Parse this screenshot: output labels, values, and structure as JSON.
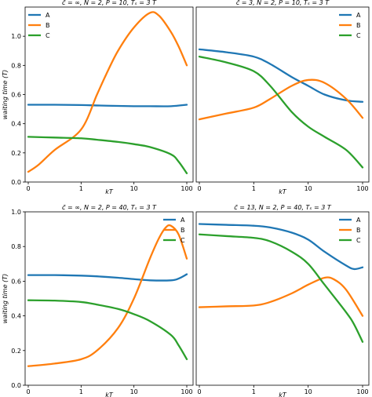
{
  "colors": {
    "A": "#1f77b4",
    "B": "#ff7f0e",
    "C": "#2ca02c"
  },
  "chart_data": [
    {
      "type": "line",
      "title": "c̄ = ∞, N = 2, P = 10, Tₛ = 3 T",
      "xlabel": "kT",
      "ylabel": "waiting time (T)",
      "xscale": "symlog",
      "xlim": [
        0,
        100
      ],
      "ylim": [
        0,
        1.2
      ],
      "xticks": [
        {
          "v": 0,
          "label": "0"
        },
        {
          "v": 1,
          "label": "1"
        },
        {
          "v": 10,
          "label": "10"
        },
        {
          "v": 100,
          "label": "100"
        }
      ],
      "yticks": [
        {
          "v": 0,
          "label": "0.0"
        },
        {
          "v": 0.2,
          "label": "0.2"
        },
        {
          "v": 0.4,
          "label": "0.4"
        },
        {
          "v": 0.6,
          "label": "0.6"
        },
        {
          "v": 0.8,
          "label": "0.8"
        },
        {
          "v": 1.0,
          "label": "1.0"
        }
      ],
      "legend": "top-left",
      "series": [
        {
          "name": "A",
          "x": [
            0,
            0.5,
            1,
            2,
            5,
            10,
            20,
            50,
            100
          ],
          "y": [
            0.53,
            0.53,
            0.528,
            0.525,
            0.522,
            0.52,
            0.52,
            0.52,
            0.53
          ]
        },
        {
          "name": "B",
          "x": [
            0,
            0.2,
            0.5,
            1,
            2,
            3,
            5,
            10,
            20,
            30,
            50,
            70,
            100
          ],
          "y": [
            0.07,
            0.12,
            0.22,
            0.36,
            0.6,
            0.74,
            0.9,
            1.06,
            1.16,
            1.14,
            1.03,
            0.93,
            0.8
          ]
        },
        {
          "name": "C",
          "x": [
            0,
            0.5,
            1,
            2,
            5,
            10,
            20,
            50,
            70,
            100
          ],
          "y": [
            0.31,
            0.305,
            0.3,
            0.29,
            0.275,
            0.26,
            0.24,
            0.19,
            0.14,
            0.06
          ]
        }
      ]
    },
    {
      "type": "line",
      "title": "c̄ = 3, N = 2, P = 10, Tₛ = 3 T",
      "xlabel": "kT",
      "ylabel": "",
      "xscale": "symlog",
      "xlim": [
        0,
        100
      ],
      "ylim": [
        0,
        1.2
      ],
      "xticks": [
        {
          "v": 0,
          "label": "0"
        },
        {
          "v": 1,
          "label": "1"
        },
        {
          "v": 10,
          "label": "10"
        },
        {
          "v": 100,
          "label": "100"
        }
      ],
      "yticks": [],
      "legend": "top-right",
      "series": [
        {
          "name": "A",
          "x": [
            0,
            0.5,
            1,
            2,
            5,
            10,
            20,
            50,
            100
          ],
          "y": [
            0.91,
            0.89,
            0.86,
            0.81,
            0.72,
            0.66,
            0.6,
            0.56,
            0.55
          ]
        },
        {
          "name": "B",
          "x": [
            0,
            0.5,
            1,
            2,
            5,
            10,
            20,
            50,
            100
          ],
          "y": [
            0.43,
            0.47,
            0.51,
            0.57,
            0.66,
            0.7,
            0.68,
            0.57,
            0.44
          ]
        },
        {
          "name": "C",
          "x": [
            0,
            0.5,
            1,
            2,
            5,
            10,
            20,
            50,
            100
          ],
          "y": [
            0.86,
            0.82,
            0.76,
            0.66,
            0.48,
            0.38,
            0.31,
            0.22,
            0.1
          ]
        }
      ]
    },
    {
      "type": "line",
      "title": "c̄ = ∞, N = 2, P = 40, Tₛ = 3 T",
      "xlabel": "kT",
      "ylabel": "waiting time (T)",
      "xscale": "symlog",
      "xlim": [
        0,
        100
      ],
      "ylim": [
        0,
        1.0
      ],
      "xticks": [
        {
          "v": 0,
          "label": "0"
        },
        {
          "v": 1,
          "label": "1"
        },
        {
          "v": 10,
          "label": "10"
        },
        {
          "v": 100,
          "label": "100"
        }
      ],
      "yticks": [
        {
          "v": 0,
          "label": "0.0"
        },
        {
          "v": 0.2,
          "label": "0.2"
        },
        {
          "v": 0.4,
          "label": "0.4"
        },
        {
          "v": 0.6,
          "label": "0.6"
        },
        {
          "v": 0.8,
          "label": "0.8"
        },
        {
          "v": 1.0,
          "label": "1.0"
        }
      ],
      "legend": "top-right",
      "series": [
        {
          "name": "A",
          "x": [
            0,
            0.5,
            1,
            2,
            5,
            10,
            20,
            50,
            70,
            100
          ],
          "y": [
            0.635,
            0.635,
            0.632,
            0.628,
            0.62,
            0.612,
            0.605,
            0.605,
            0.615,
            0.64
          ]
        },
        {
          "name": "B",
          "x": [
            0,
            0.5,
            1,
            2,
            5,
            10,
            20,
            30,
            40,
            50,
            70,
            100
          ],
          "y": [
            0.11,
            0.125,
            0.15,
            0.2,
            0.33,
            0.5,
            0.73,
            0.85,
            0.91,
            0.92,
            0.87,
            0.73
          ]
        },
        {
          "name": "C",
          "x": [
            0,
            0.5,
            1,
            2,
            5,
            10,
            20,
            50,
            70,
            100
          ],
          "y": [
            0.49,
            0.488,
            0.48,
            0.465,
            0.44,
            0.41,
            0.37,
            0.29,
            0.23,
            0.15
          ]
        }
      ]
    },
    {
      "type": "line",
      "title": "c̄ = 13, N = 2, P = 40, Tₛ = 3 T",
      "xlabel": "kT",
      "ylabel": "",
      "xscale": "symlog",
      "xlim": [
        0,
        100
      ],
      "ylim": [
        0,
        1.0
      ],
      "xticks": [
        {
          "v": 0,
          "label": "0"
        },
        {
          "v": 1,
          "label": "1"
        },
        {
          "v": 10,
          "label": "10"
        },
        {
          "v": 100,
          "label": "100"
        }
      ],
      "yticks": [],
      "legend": "top-right",
      "series": [
        {
          "name": "A",
          "x": [
            0,
            0.5,
            1,
            2,
            5,
            10,
            20,
            50,
            70,
            100
          ],
          "y": [
            0.93,
            0.925,
            0.92,
            0.91,
            0.88,
            0.84,
            0.77,
            0.69,
            0.67,
            0.68
          ]
        },
        {
          "name": "B",
          "x": [
            0,
            0.5,
            1,
            2,
            5,
            10,
            20,
            30,
            50,
            100
          ],
          "y": [
            0.45,
            0.455,
            0.46,
            0.48,
            0.53,
            0.58,
            0.62,
            0.61,
            0.55,
            0.4
          ]
        },
        {
          "name": "C",
          "x": [
            0,
            0.5,
            1,
            2,
            5,
            10,
            20,
            50,
            70,
            100
          ],
          "y": [
            0.87,
            0.86,
            0.85,
            0.83,
            0.77,
            0.7,
            0.58,
            0.42,
            0.35,
            0.25
          ]
        }
      ]
    }
  ]
}
